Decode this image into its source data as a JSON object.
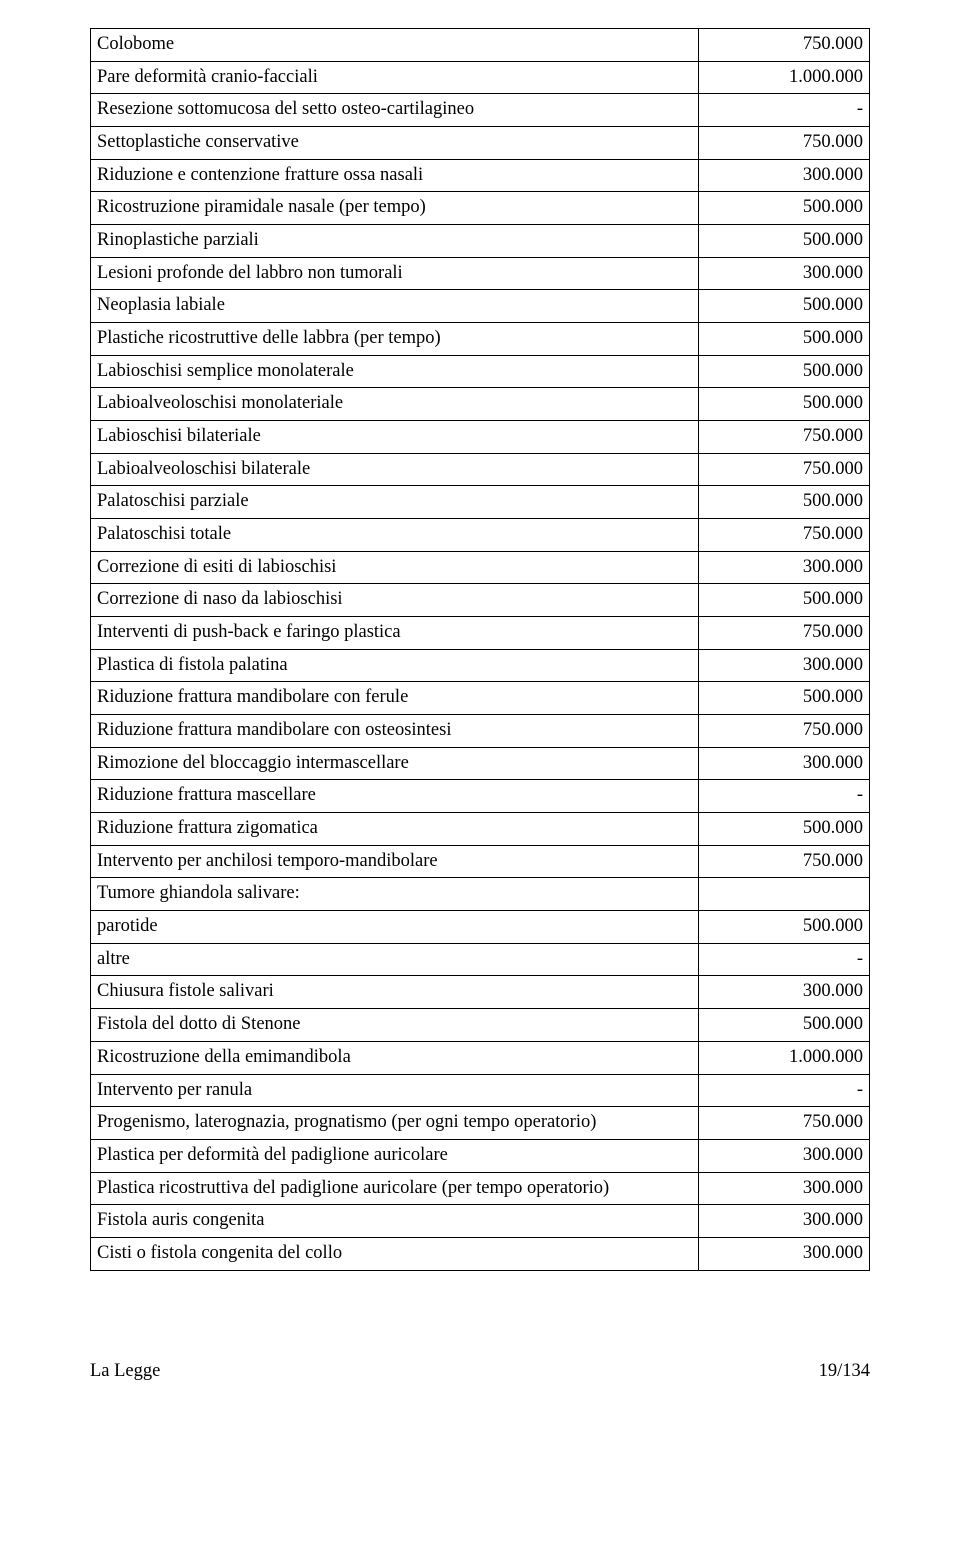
{
  "table": {
    "rows": [
      {
        "desc": "Colobome",
        "val": "750.000"
      },
      {
        "desc": "Pare deformità cranio-facciali",
        "val": "1.000.000"
      },
      {
        "desc": "Resezione sottomucosa del setto osteo-cartilagineo",
        "val": "-"
      },
      {
        "desc": "Settoplastiche conservative",
        "val": "750.000"
      },
      {
        "desc": "Riduzione e contenzione fratture ossa nasali",
        "val": "300.000"
      },
      {
        "desc": "Ricostruzione piramidale nasale (per tempo)",
        "val": "500.000"
      },
      {
        "desc": "Rinoplastiche parziali",
        "val": "500.000"
      },
      {
        "desc": "Lesioni profonde del labbro non tumorali",
        "val": "300.000"
      },
      {
        "desc": "Neoplasia labiale",
        "val": "500.000"
      },
      {
        "desc": "Plastiche ricostruttive delle labbra (per tempo)",
        "val": "500.000"
      },
      {
        "desc": "Labioschisi semplice monolaterale",
        "val": "500.000"
      },
      {
        "desc": "Labioalveoloschisi monolateriale",
        "val": "500.000"
      },
      {
        "desc": "Labioschisi bilateriale",
        "val": "750.000"
      },
      {
        "desc": "Labioalveoloschisi bilaterale",
        "val": "750.000"
      },
      {
        "desc": "Palatoschisi parziale",
        "val": "500.000"
      },
      {
        "desc": "Palatoschisi totale",
        "val": "750.000"
      },
      {
        "desc": "Correzione di esiti di labioschisi",
        "val": "300.000"
      },
      {
        "desc": "Correzione di naso da labioschisi",
        "val": "500.000"
      },
      {
        "desc": "Interventi di push-back e faringo plastica",
        "val": "750.000"
      },
      {
        "desc": "Plastica di fistola palatina",
        "val": "300.000"
      },
      {
        "desc": "Riduzione frattura mandibolare con ferule",
        "val": "500.000"
      },
      {
        "desc": "Riduzione frattura mandibolare con osteosintesi",
        "val": "750.000"
      },
      {
        "desc": "Rimozione del bloccaggio intermascellare",
        "val": "300.000"
      },
      {
        "desc": "Riduzione frattura mascellare",
        "val": "-"
      },
      {
        "desc": "Riduzione frattura zigomatica",
        "val": "500.000"
      },
      {
        "desc": "Intervento per anchilosi temporo-mandibolare",
        "val": "750.000"
      },
      {
        "desc": "Tumore ghiandola salivare:",
        "val": ""
      },
      {
        "desc": "parotide",
        "val": "500.000"
      },
      {
        "desc": "altre",
        "val": "-"
      },
      {
        "desc": "Chiusura fistole salivari",
        "val": "300.000"
      },
      {
        "desc": "Fistola del dotto di Stenone",
        "val": "500.000"
      },
      {
        "desc": "Ricostruzione della emimandibola",
        "val": "1.000.000"
      },
      {
        "desc": "Intervento per ranula",
        "val": "-"
      },
      {
        "desc": "Progenismo, laterognazia, prognatismo (per ogni tempo operatorio)",
        "val": "750.000"
      },
      {
        "desc": "Plastica per deformità del padiglione auricolare",
        "val": "300.000"
      },
      {
        "desc": "Plastica ricostruttiva del padiglione auricolare (per tempo operatorio)",
        "val": "300.000"
      },
      {
        "desc": "Fistola auris congenita",
        "val": "300.000"
      },
      {
        "desc": "Cisti o fistola congenita del collo",
        "val": "300.000"
      }
    ]
  },
  "footer": {
    "left": "La Legge",
    "right": "19/134"
  }
}
